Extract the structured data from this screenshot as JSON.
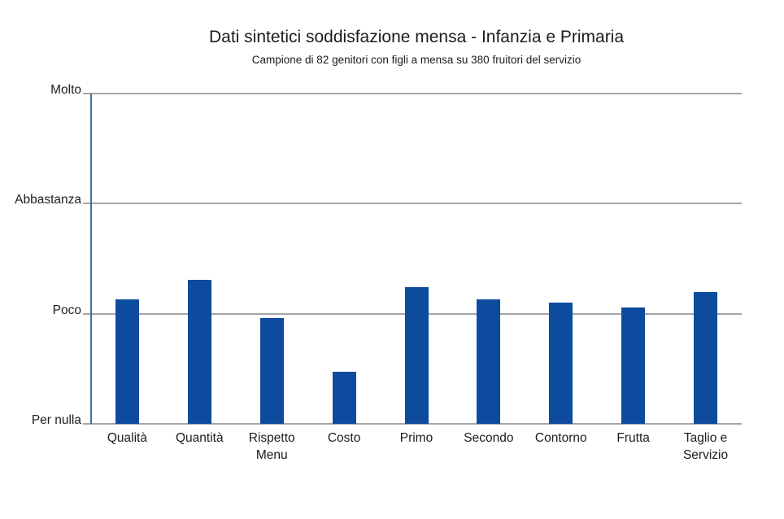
{
  "chart_data": {
    "type": "bar",
    "title": "Dati sintetici soddisfazione mensa - Infanzia e Primaria",
    "subtitle": "Campione di 82 genitori con figli a mensa su 380 fruitori del servizio",
    "categories": [
      "Qualità",
      "Quantità",
      "Rispetto\nMenu",
      "Costo",
      "Primo",
      "Secondo",
      "Contorno",
      "Frutta",
      "Taglio e\nServizio"
    ],
    "values": [
      1.13,
      1.31,
      0.96,
      0.47,
      1.24,
      1.13,
      1.1,
      1.06,
      1.2
    ],
    "y_tick_labels": [
      "Per nulla",
      "Poco",
      "Abbastanza",
      "Molto"
    ],
    "y_tick_values": [
      0,
      1,
      2,
      3
    ],
    "ylim": [
      0,
      3
    ],
    "grid": true,
    "legend": false,
    "colors": {
      "bar": "#0D4B9E",
      "axis": "#41719C",
      "gridline": "#A6A6A6",
      "text": "#1C1C1C"
    }
  }
}
